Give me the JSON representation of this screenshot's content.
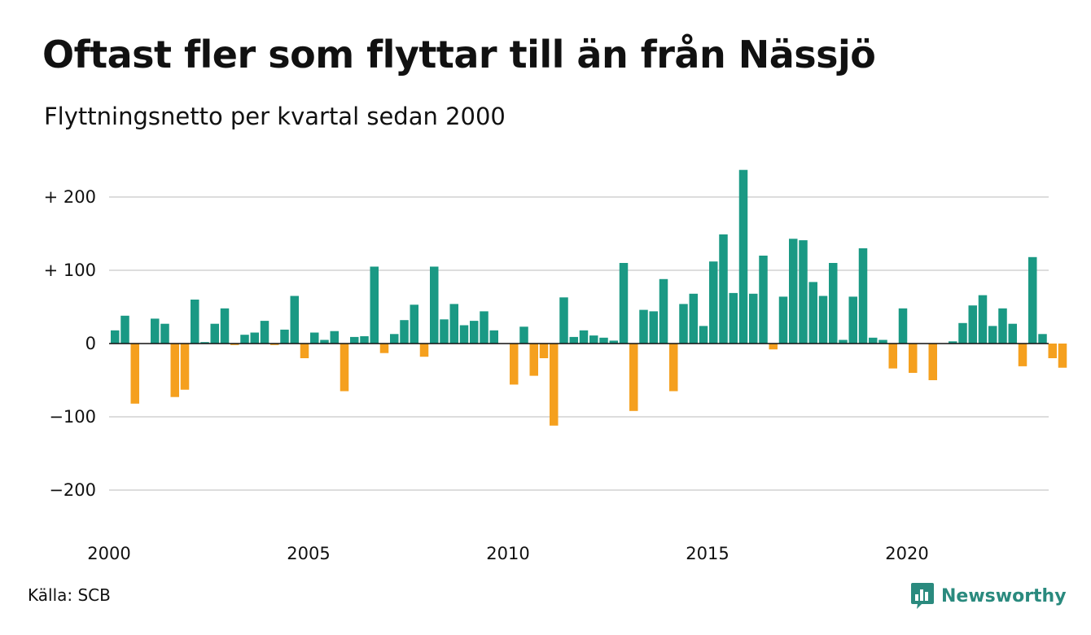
{
  "title": "Oftast fler som flyttar till än från Nässjö",
  "subtitle": "Flyttningsnetto per kvartal sedan 2000",
  "source": "Källa: SCB",
  "brand": {
    "name": "Newsworthy",
    "icon": "newsworthy-chart-bubble-icon",
    "color": "#2a8a7e"
  },
  "colors": {
    "positive": "#1a9984",
    "negative": "#f5a01e",
    "grid": "#dddddd",
    "zero_line": "#111111"
  },
  "chart_data": {
    "type": "bar",
    "title": "Oftast fler som flyttar till än från Nässjö",
    "subtitle": "Flyttningsnetto per kvartal sedan 2000",
    "xlabel": "",
    "ylabel": "",
    "ylim": [
      -250,
      250
    ],
    "yticks": [
      {
        "value": 200,
        "label": "+ 200"
      },
      {
        "value": 100,
        "label": "+ 100"
      },
      {
        "value": 0,
        "label": "0"
      },
      {
        "value": -100,
        "label": "−100"
      },
      {
        "value": -200,
        "label": "−200"
      }
    ],
    "xticks": [
      {
        "year": 2000,
        "label": "2000"
      },
      {
        "year": 2005,
        "label": "2005"
      },
      {
        "year": 2010,
        "label": "2010"
      },
      {
        "year": 2015,
        "label": "2015"
      },
      {
        "year": 2020,
        "label": "2020"
      }
    ],
    "start_year": 2000,
    "grid": true,
    "categories": [
      "2000K1",
      "2000K2",
      "2000K3",
      "2000K4",
      "2001K1",
      "2001K2",
      "2001K3",
      "2001K4",
      "2002K1",
      "2002K2",
      "2002K3",
      "2002K4",
      "2003K1",
      "2003K2",
      "2003K3",
      "2003K4",
      "2004K1",
      "2004K2",
      "2004K3",
      "2004K4",
      "2005K1",
      "2005K2",
      "2005K3",
      "2005K4",
      "2006K1",
      "2006K2",
      "2006K3",
      "2006K4",
      "2007K1",
      "2007K2",
      "2007K3",
      "2007K4",
      "2008K1",
      "2008K2",
      "2008K3",
      "2008K4",
      "2009K1",
      "2009K2",
      "2009K3",
      "2009K4",
      "2010K1",
      "2010K2",
      "2010K3",
      "2010K4",
      "2011K1",
      "2011K2",
      "2011K3",
      "2011K4",
      "2012K1",
      "2012K2",
      "2012K3",
      "2012K4",
      "2013K1",
      "2013K2",
      "2013K3",
      "2013K4",
      "2014K1",
      "2014K2",
      "2014K3",
      "2014K4",
      "2015K1",
      "2015K2",
      "2015K3",
      "2015K4",
      "2016K1",
      "2016K2",
      "2016K3",
      "2016K4",
      "2017K1",
      "2017K2",
      "2017K3",
      "2017K4",
      "2018K1",
      "2018K2",
      "2018K3",
      "2018K4",
      "2019K1",
      "2019K2",
      "2019K3",
      "2019K4",
      "2020K1",
      "2020K2",
      "2020K3",
      "2020K4",
      "2021K1",
      "2021K2",
      "2021K3",
      "2021K4",
      "2022K1",
      "2022K2",
      "2022K3",
      "2022K4",
      "2023K1",
      "2023K2",
      "2023K3",
      "2023K4"
    ],
    "values": [
      18,
      38,
      -82,
      0,
      34,
      27,
      -73,
      -63,
      60,
      2,
      27,
      48,
      -2,
      12,
      15,
      31,
      -2,
      19,
      65,
      -20,
      15,
      5,
      17,
      -65,
      9,
      10,
      105,
      -13,
      13,
      32,
      53,
      -18,
      105,
      33,
      54,
      25,
      31,
      44,
      18,
      0,
      -56,
      23,
      -44,
      -20,
      -112,
      63,
      9,
      18,
      11,
      8,
      4,
      110,
      -92,
      46,
      44,
      88,
      -65,
      54,
      68,
      24,
      112,
      149,
      69,
      237,
      68,
      120,
      -8,
      64,
      143,
      141,
      84,
      65,
      110,
      5,
      64,
      130,
      8,
      5,
      -34,
      48,
      -40,
      0,
      -50,
      0,
      3,
      28,
      52,
      66,
      24,
      48,
      27,
      -31,
      118,
      13,
      -20,
      -33
    ]
  }
}
